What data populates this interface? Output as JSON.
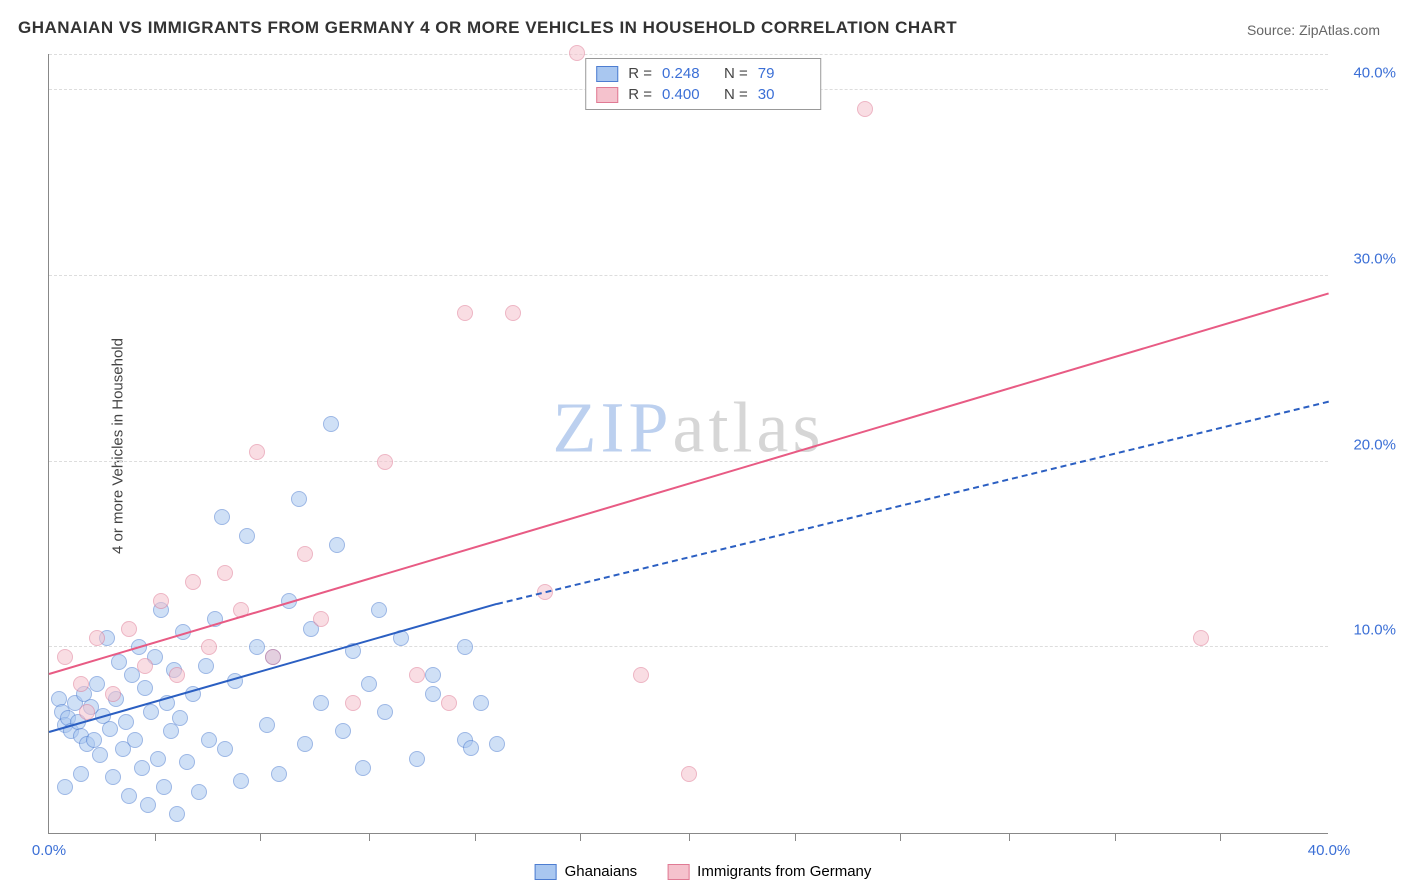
{
  "title": "GHANAIAN VS IMMIGRANTS FROM GERMANY 4 OR MORE VEHICLES IN HOUSEHOLD CORRELATION CHART",
  "source": "Source: ZipAtlas.com",
  "ylabel": "4 or more Vehicles in Household",
  "watermark": {
    "text1": "ZIP",
    "text2": "atlas",
    "color1": "#bcd0ef",
    "color2": "#d6d6d6"
  },
  "chart": {
    "type": "scatter",
    "background_color": "#ffffff",
    "grid_color": "#dddddd",
    "axis_color": "#888888",
    "tick_color": "#3b6fd6",
    "xlim": [
      0,
      40
    ],
    "ylim": [
      0,
      42
    ],
    "yticks": [
      10,
      20,
      30,
      40
    ],
    "ytick_labels": [
      "10.0%",
      "20.0%",
      "30.0%",
      "40.0%"
    ],
    "xticks": [
      0,
      20,
      40
    ],
    "xtick_labels": [
      "0.0%",
      "",
      "40.0%"
    ],
    "xtick_minors": [
      3.3,
      6.6,
      10,
      13.3,
      16.6,
      20,
      23.3,
      26.6,
      30,
      33.3,
      36.6
    ],
    "point_radius": 8,
    "point_opacity": 0.55,
    "series": [
      {
        "name": "Ghanaians",
        "fill": "#a9c7f0",
        "stroke": "#4d7dd1",
        "r_value": "0.248",
        "n_value": "79",
        "trend": {
          "x1": 0,
          "y1": 5.4,
          "x2": 14,
          "y2": 12.3,
          "extend_x": 40,
          "extend_y": 23.2,
          "color": "#2b5fc2",
          "width": 2,
          "dash_extend": true
        },
        "points": [
          [
            0.3,
            7.2
          ],
          [
            0.4,
            6.5
          ],
          [
            0.5,
            5.8
          ],
          [
            0.6,
            6.2
          ],
          [
            0.7,
            5.5
          ],
          [
            0.8,
            7.0
          ],
          [
            0.9,
            6.0
          ],
          [
            1.0,
            5.2
          ],
          [
            1.1,
            7.5
          ],
          [
            1.2,
            4.8
          ],
          [
            1.3,
            6.8
          ],
          [
            1.4,
            5.0
          ],
          [
            1.5,
            8.0
          ],
          [
            1.6,
            4.2
          ],
          [
            1.7,
            6.3
          ],
          [
            1.8,
            10.5
          ],
          [
            1.9,
            5.6
          ],
          [
            2.0,
            3.0
          ],
          [
            2.1,
            7.2
          ],
          [
            2.2,
            9.2
          ],
          [
            2.3,
            4.5
          ],
          [
            2.4,
            6.0
          ],
          [
            2.5,
            2.0
          ],
          [
            2.6,
            8.5
          ],
          [
            2.7,
            5.0
          ],
          [
            2.8,
            10.0
          ],
          [
            2.9,
            3.5
          ],
          [
            3.0,
            7.8
          ],
          [
            3.1,
            1.5
          ],
          [
            3.2,
            6.5
          ],
          [
            3.3,
            9.5
          ],
          [
            3.4,
            4.0
          ],
          [
            3.5,
            12.0
          ],
          [
            3.6,
            2.5
          ],
          [
            3.7,
            7.0
          ],
          [
            3.8,
            5.5
          ],
          [
            3.9,
            8.8
          ],
          [
            4.0,
            1.0
          ],
          [
            4.1,
            6.2
          ],
          [
            4.2,
            10.8
          ],
          [
            4.3,
            3.8
          ],
          [
            4.5,
            7.5
          ],
          [
            4.7,
            2.2
          ],
          [
            4.9,
            9.0
          ],
          [
            5.0,
            5.0
          ],
          [
            5.2,
            11.5
          ],
          [
            5.4,
            17.0
          ],
          [
            5.5,
            4.5
          ],
          [
            5.8,
            8.2
          ],
          [
            6.0,
            2.8
          ],
          [
            6.2,
            16.0
          ],
          [
            6.5,
            10.0
          ],
          [
            6.8,
            5.8
          ],
          [
            7.0,
            9.5
          ],
          [
            7.2,
            3.2
          ],
          [
            7.5,
            12.5
          ],
          [
            7.8,
            18.0
          ],
          [
            8.0,
            4.8
          ],
          [
            8.2,
            11.0
          ],
          [
            8.5,
            7.0
          ],
          [
            8.8,
            22.0
          ],
          [
            9.0,
            15.5
          ],
          [
            9.2,
            5.5
          ],
          [
            9.5,
            9.8
          ],
          [
            9.8,
            3.5
          ],
          [
            10.0,
            8.0
          ],
          [
            10.3,
            12.0
          ],
          [
            10.5,
            6.5
          ],
          [
            11.0,
            10.5
          ],
          [
            11.5,
            4.0
          ],
          [
            12.0,
            7.5
          ],
          [
            12.0,
            8.5
          ],
          [
            13.0,
            5.0
          ],
          [
            13.2,
            4.6
          ],
          [
            13.0,
            10.0
          ],
          [
            13.5,
            7.0
          ],
          [
            14.0,
            4.8
          ],
          [
            1.0,
            3.2
          ],
          [
            0.5,
            2.5
          ]
        ]
      },
      {
        "name": "Immigrants from Germany",
        "fill": "#f5c2cd",
        "stroke": "#e07a94",
        "r_value": "0.400",
        "n_value": "30",
        "trend": {
          "x1": 0,
          "y1": 8.5,
          "x2": 40,
          "y2": 29.0,
          "color": "#e85b84",
          "width": 2,
          "dash_extend": false
        },
        "points": [
          [
            0.5,
            9.5
          ],
          [
            1.0,
            8.0
          ],
          [
            1.5,
            10.5
          ],
          [
            2.0,
            7.5
          ],
          [
            2.5,
            11.0
          ],
          [
            3.0,
            9.0
          ],
          [
            3.5,
            12.5
          ],
          [
            4.0,
            8.5
          ],
          [
            4.5,
            13.5
          ],
          [
            5.0,
            10.0
          ],
          [
            5.5,
            14.0
          ],
          [
            6.0,
            12.0
          ],
          [
            6.5,
            20.5
          ],
          [
            7.0,
            9.5
          ],
          [
            8.0,
            15.0
          ],
          [
            8.5,
            11.5
          ],
          [
            9.5,
            7.0
          ],
          [
            10.5,
            20.0
          ],
          [
            11.5,
            8.5
          ],
          [
            12.5,
            7.0
          ],
          [
            13.0,
            28.0
          ],
          [
            14.5,
            28.0
          ],
          [
            15.5,
            13.0
          ],
          [
            16.5,
            42.0
          ],
          [
            18.5,
            8.5
          ],
          [
            20.0,
            3.2
          ],
          [
            23.0,
            40.0
          ],
          [
            25.5,
            39.0
          ],
          [
            36.0,
            10.5
          ],
          [
            1.2,
            6.5
          ]
        ]
      }
    ]
  },
  "legend_top_labels": {
    "r": "R  =",
    "n": "N  ="
  },
  "legend_bottom": [
    {
      "label": "Ghanaians",
      "fill": "#a9c7f0",
      "stroke": "#4d7dd1"
    },
    {
      "label": "Immigrants from Germany",
      "fill": "#f5c2cd",
      "stroke": "#e07a94"
    }
  ]
}
